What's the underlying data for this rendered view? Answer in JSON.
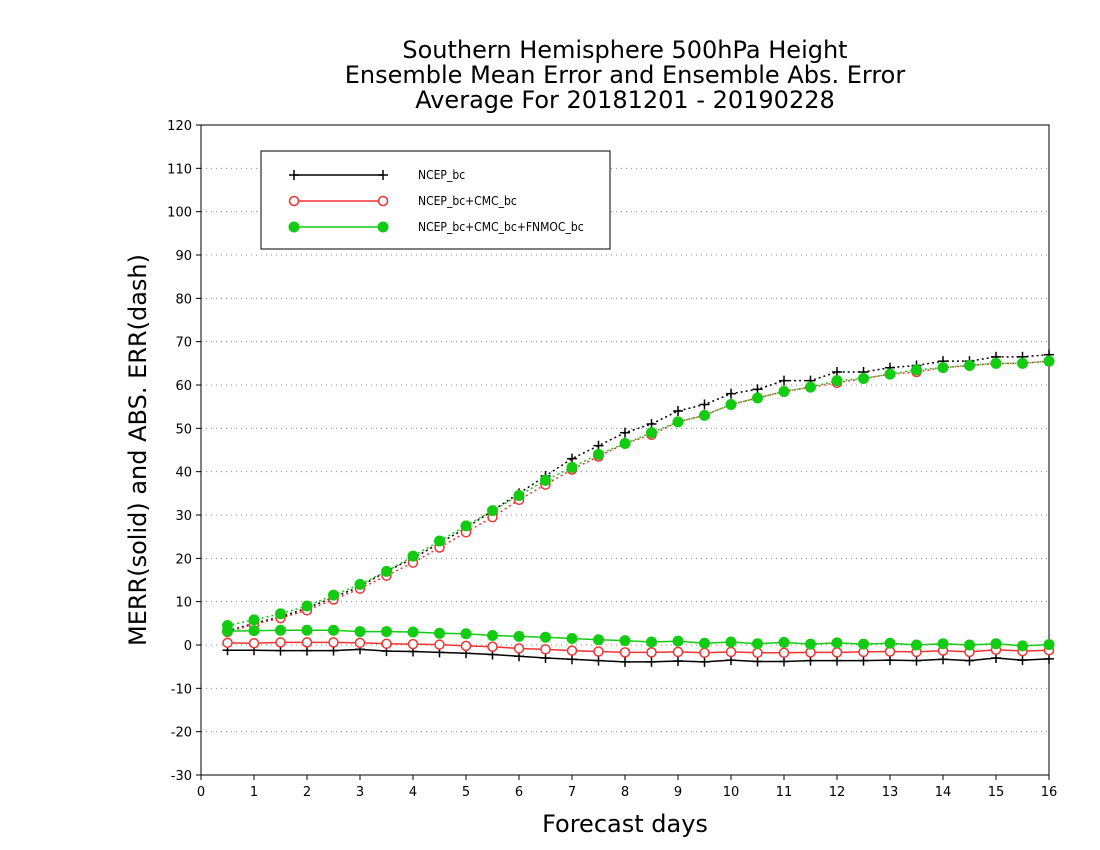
{
  "chart_data": {
    "type": "line",
    "title": [
      "Southern Hemisphere 500hPa Height",
      "Ensemble Mean Error and Ensemble Abs. Error",
      "Average For 20181201 - 20190228"
    ],
    "xlabel": "Forecast days",
    "ylabel": "MERR(solid) and ABS. ERR(dash)",
    "xlim": [
      0,
      16
    ],
    "ylim": [
      -30,
      120
    ],
    "xticks": [
      "0",
      "1",
      "2",
      "3",
      "4",
      "5",
      "6",
      "7",
      "8",
      "9",
      "10",
      "11",
      "12",
      "13",
      "14",
      "15",
      "16"
    ],
    "yticks": [
      "120",
      "110",
      "100",
      "90",
      "80",
      "70",
      "60",
      "50",
      "40",
      "30",
      "20",
      "10",
      "0",
      "-10",
      "-20",
      "-30"
    ],
    "grid": "horizontal-dotted",
    "legend_position": "top-left",
    "x": [
      0.5,
      1,
      1.5,
      2,
      2.5,
      3,
      3.5,
      4,
      4.5,
      5,
      5.5,
      6,
      6.5,
      7,
      7.5,
      8,
      8.5,
      9,
      9.5,
      10,
      10.5,
      11,
      11.5,
      12,
      12.5,
      13,
      13.5,
      14,
      14.5,
      15,
      15.5,
      16
    ],
    "series": [
      {
        "name": "NCEP_bc",
        "color": "#000000",
        "marker": "plus",
        "merr": [
          -1.2,
          -1.2,
          -1.3,
          -1.3,
          -1.3,
          -1.0,
          -1.4,
          -1.5,
          -1.7,
          -1.9,
          -2.2,
          -2.6,
          -3.0,
          -3.3,
          -3.6,
          -3.9,
          -3.9,
          -3.7,
          -3.9,
          -3.5,
          -3.8,
          -3.8,
          -3.6,
          -3.6,
          -3.6,
          -3.5,
          -3.6,
          -3.3,
          -3.6,
          -3.0,
          -3.5,
          -3.2
        ],
        "abs_err": [
          3.2,
          5.0,
          6.5,
          8.5,
          11.0,
          13.5,
          17.0,
          20.0,
          23.5,
          27.0,
          31.0,
          35.0,
          39.0,
          43.0,
          46.0,
          49.0,
          51.0,
          54.0,
          55.5,
          58.0,
          59.0,
          61.0,
          61.0,
          63.0,
          63.0,
          64.0,
          64.5,
          65.5,
          65.5,
          66.5,
          66.5,
          67.0
        ]
      },
      {
        "name": "NCEP_bc+CMC_bc",
        "color": "#ee3333",
        "marker": "open-circle",
        "merr": [
          0.5,
          0.4,
          0.6,
          0.6,
          0.6,
          0.5,
          0.3,
          0.2,
          0.1,
          -0.2,
          -0.4,
          -0.8,
          -1.0,
          -1.3,
          -1.5,
          -1.7,
          -1.7,
          -1.6,
          -1.8,
          -1.6,
          -1.8,
          -1.8,
          -1.7,
          -1.7,
          -1.6,
          -1.5,
          -1.6,
          -1.3,
          -1.6,
          -1.1,
          -1.4,
          -1.2
        ],
        "abs_err": [
          3.0,
          4.8,
          6.2,
          8.0,
          10.5,
          13.0,
          16.0,
          19.0,
          22.5,
          26.0,
          29.5,
          33.5,
          37.0,
          40.5,
          43.5,
          46.5,
          48.5,
          51.5,
          53.0,
          55.5,
          57.0,
          58.5,
          59.5,
          60.5,
          61.5,
          62.5,
          63.0,
          64.0,
          64.5,
          65.0,
          65.0,
          65.5
        ]
      },
      {
        "name": "NCEP_bc+CMC_bc+FNMOC_bc",
        "color": "#11cc11",
        "marker": "filled-circle",
        "merr": [
          3.2,
          3.3,
          3.4,
          3.4,
          3.4,
          3.1,
          3.1,
          3.0,
          2.7,
          2.6,
          2.2,
          2.0,
          1.8,
          1.5,
          1.2,
          1.0,
          0.7,
          0.9,
          0.4,
          0.7,
          0.3,
          0.6,
          0.2,
          0.5,
          0.2,
          0.4,
          0.0,
          0.3,
          0.0,
          0.3,
          -0.2,
          0.1
        ],
        "abs_err": [
          4.5,
          5.8,
          7.2,
          9.0,
          11.5,
          14.0,
          17.0,
          20.5,
          24.0,
          27.5,
          31.0,
          34.5,
          38.0,
          41.0,
          44.0,
          46.5,
          49.0,
          51.5,
          53.0,
          55.5,
          57.0,
          58.5,
          59.5,
          61.0,
          61.5,
          62.5,
          63.5,
          64.0,
          64.5,
          65.0,
          65.0,
          65.5
        ]
      }
    ]
  }
}
